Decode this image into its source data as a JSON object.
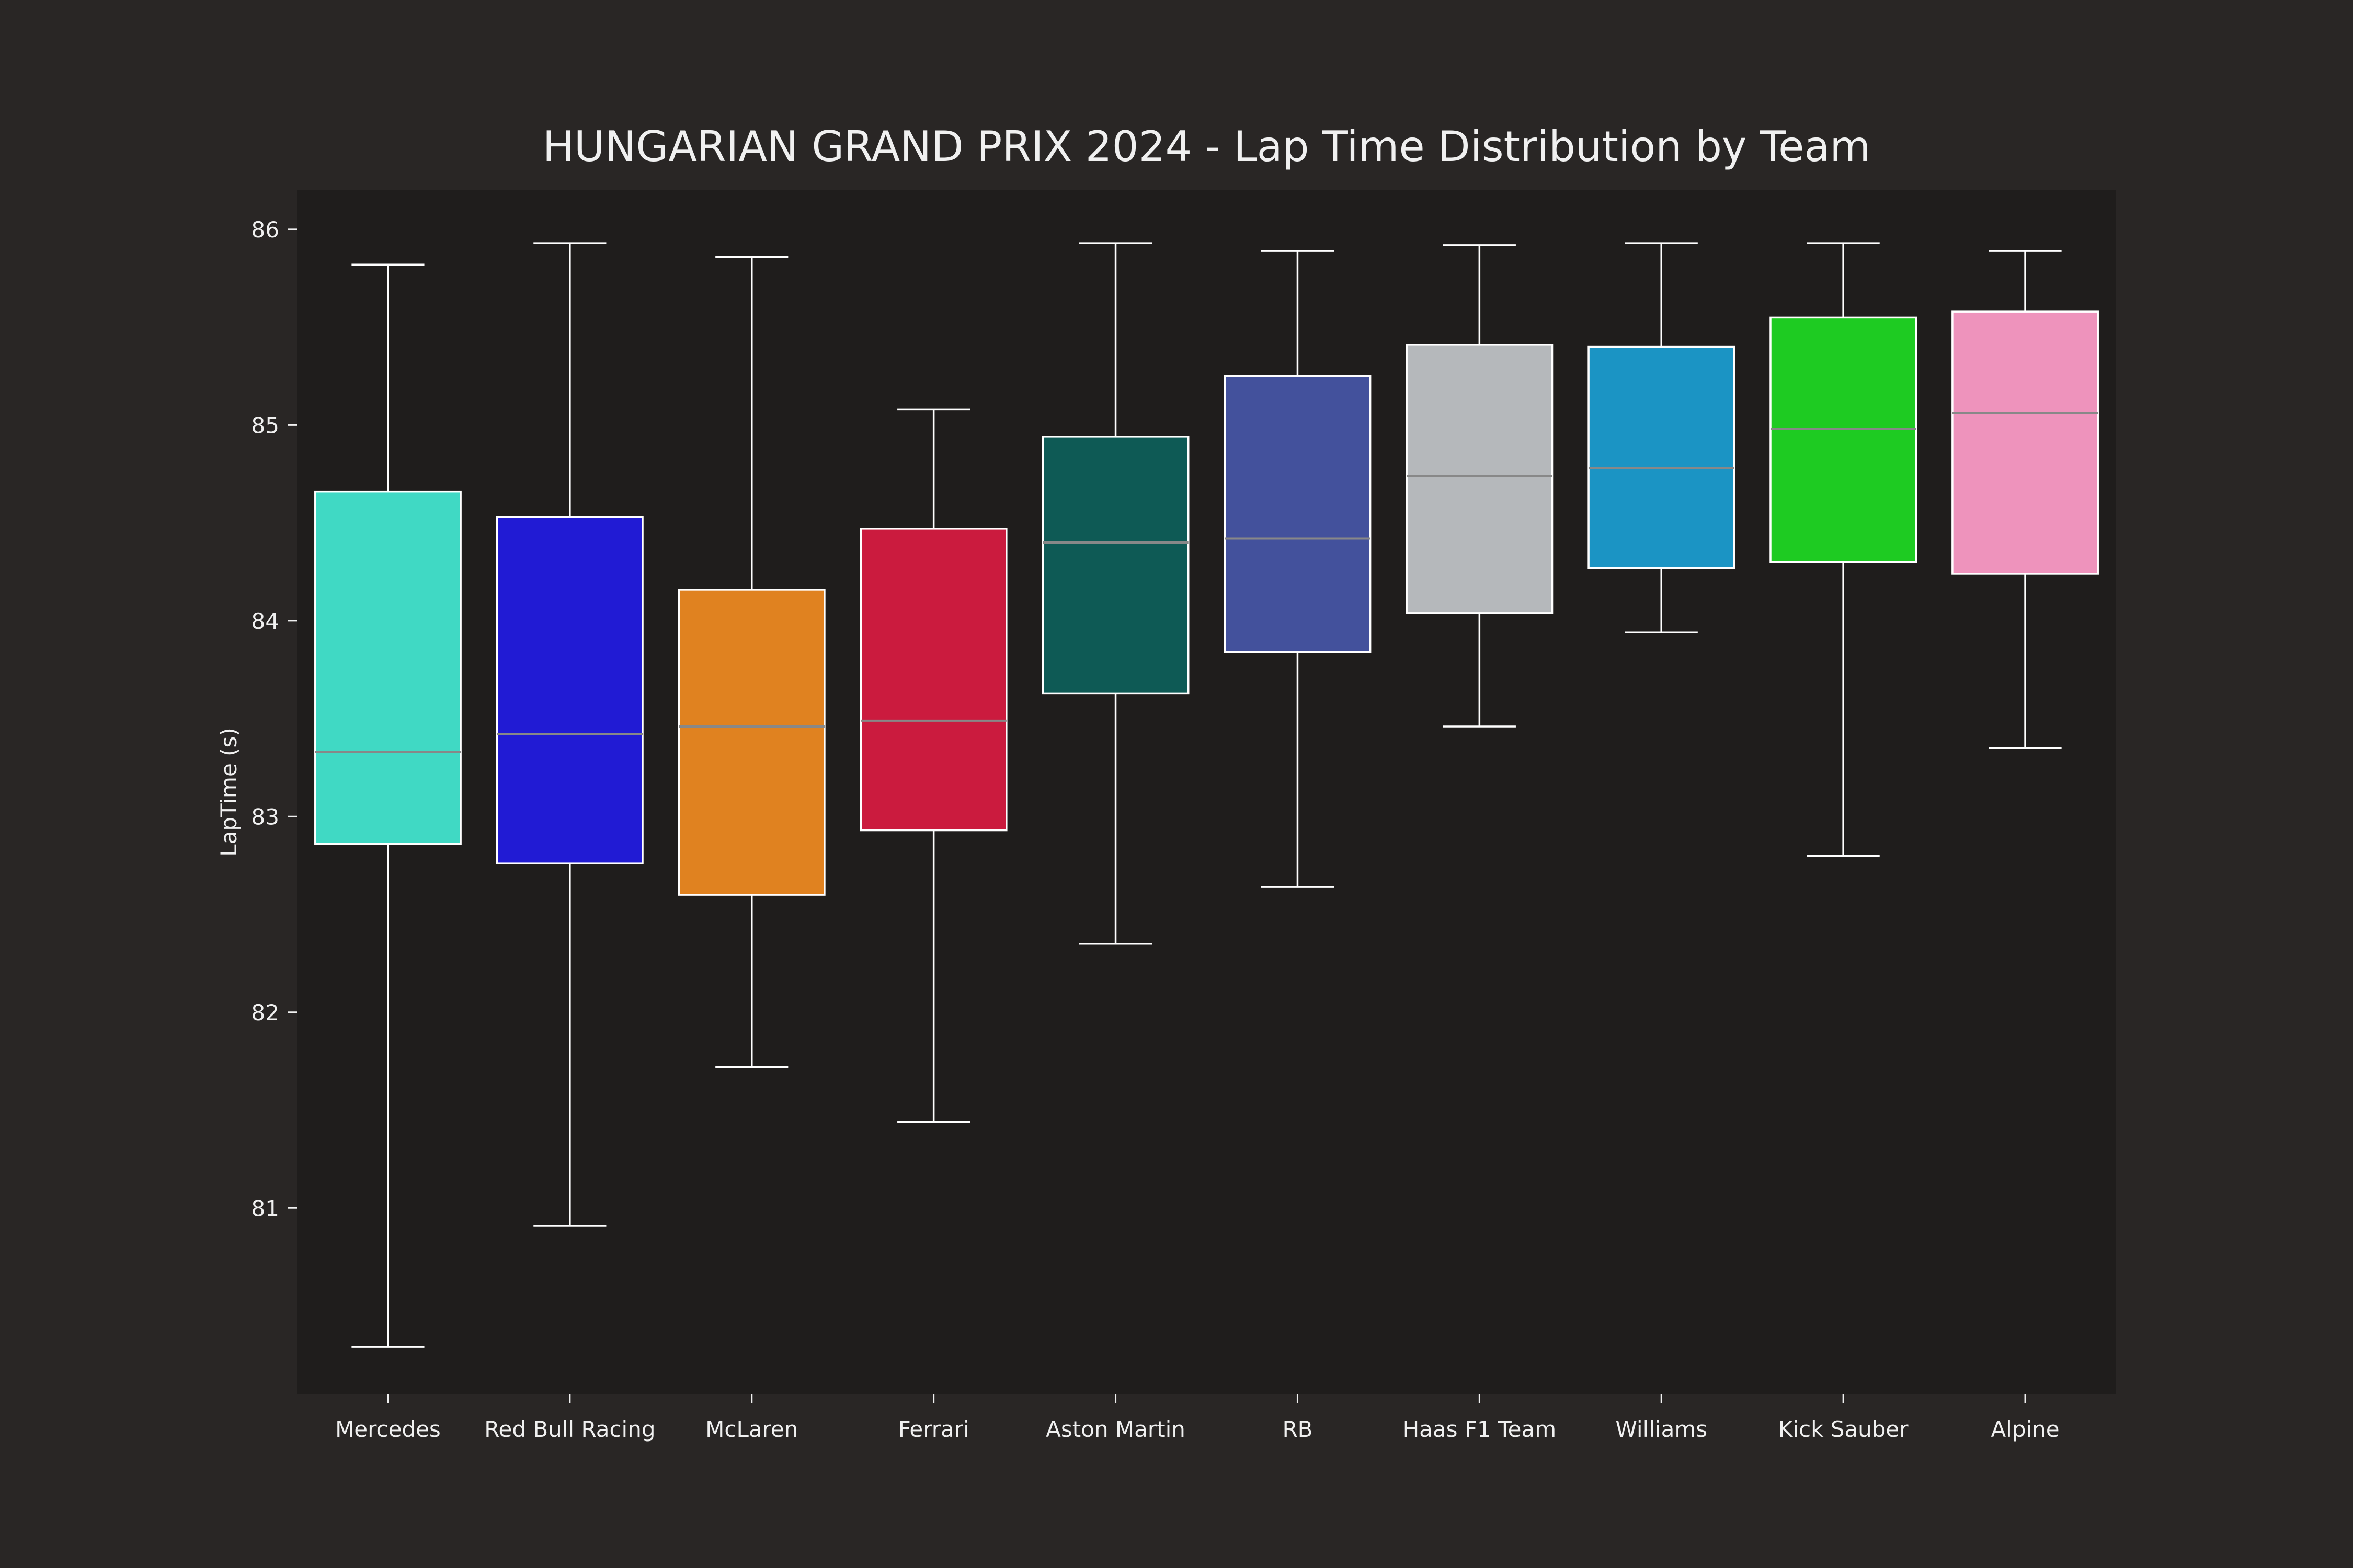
{
  "chart_data": {
    "type": "box",
    "title": "HUNGARIAN GRAND PRIX 2024 - Lap Time Distribution by Team",
    "xlabel": "",
    "ylabel": "LapTime (s)",
    "ylim": [
      80.05,
      86.2
    ],
    "yticks": [
      81,
      82,
      83,
      84,
      85,
      86
    ],
    "grid": false,
    "legend": "none",
    "colors": {
      "background": "#292625",
      "plot_background": "#1f1d1c",
      "whisker": "#ffffff",
      "median": "#888888",
      "text": "#f0f0f0"
    },
    "series": [
      {
        "category": "Mercedes",
        "color": "#40d9c4",
        "whisker_low": 80.29,
        "q1": 82.86,
        "median": 83.33,
        "q3": 84.66,
        "whisker_high": 85.82
      },
      {
        "category": "Red Bull Racing",
        "color": "#211bd4",
        "whisker_low": 80.91,
        "q1": 82.76,
        "median": 83.42,
        "q3": 84.53,
        "whisker_high": 85.93
      },
      {
        "category": "McLaren",
        "color": "#e08220",
        "whisker_low": 81.72,
        "q1": 82.6,
        "median": 83.46,
        "q3": 84.16,
        "whisker_high": 85.86
      },
      {
        "category": "Ferrari",
        "color": "#cb1b3e",
        "whisker_low": 81.44,
        "q1": 82.93,
        "median": 83.49,
        "q3": 84.47,
        "whisker_high": 85.08
      },
      {
        "category": "Aston Martin",
        "color": "#0e5a55",
        "whisker_low": 82.35,
        "q1": 83.63,
        "median": 84.4,
        "q3": 84.94,
        "whisker_high": 85.93
      },
      {
        "category": "RB",
        "color": "#43519c",
        "whisker_low": 82.64,
        "q1": 83.84,
        "median": 84.42,
        "q3": 85.25,
        "whisker_high": 85.89
      },
      {
        "category": "Haas F1 Team",
        "color": "#b5b8bb",
        "whisker_low": 83.46,
        "q1": 84.04,
        "median": 84.74,
        "q3": 85.41,
        "whisker_high": 85.92
      },
      {
        "category": "Williams",
        "color": "#1b94c4",
        "whisker_low": 83.94,
        "q1": 84.27,
        "median": 84.78,
        "q3": 85.4,
        "whisker_high": 85.93
      },
      {
        "category": "Kick Sauber",
        "color": "#1ecb22",
        "whisker_low": 82.8,
        "q1": 84.3,
        "median": 84.98,
        "q3": 85.55,
        "whisker_high": 85.93
      },
      {
        "category": "Alpine",
        "color": "#ee93bc",
        "whisker_low": 83.35,
        "q1": 84.24,
        "median": 85.06,
        "q3": 85.58,
        "whisker_high": 85.89
      }
    ]
  }
}
